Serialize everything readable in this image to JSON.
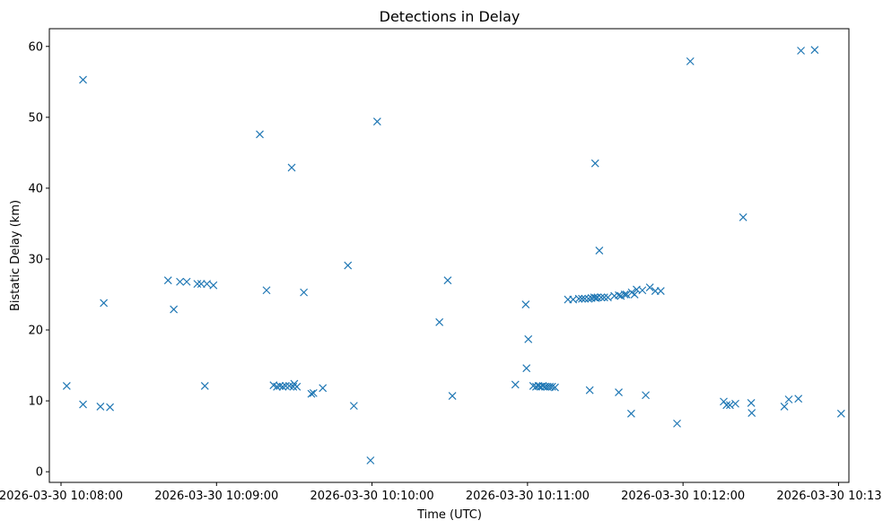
{
  "chart_data": {
    "type": "scatter",
    "title": "Detections in Delay",
    "xlabel": "Time (UTC)",
    "ylabel": "Bistatic Delay (km)",
    "x_unit": "seconds since 2026-03-30 10:08:00 UTC",
    "xlim": [
      -4.5,
      304
    ],
    "ylim": [
      -1.5,
      62.5
    ],
    "grid": false,
    "marker": "x",
    "color": "#1f77b4",
    "x_ticks": [
      {
        "value": 0,
        "label": "2026-03-30 10:08:00"
      },
      {
        "value": 60,
        "label": "2026-03-30 10:09:00"
      },
      {
        "value": 120,
        "label": "2026-03-30 10:10:00"
      },
      {
        "value": 180,
        "label": "2026-03-30 10:11:00"
      },
      {
        "value": 240,
        "label": "2026-03-30 10:12:00"
      },
      {
        "value": 300,
        "label": "2026-03-30 10:13:00"
      }
    ],
    "y_ticks": [
      {
        "value": 0,
        "label": "0"
      },
      {
        "value": 10,
        "label": "10"
      },
      {
        "value": 20,
        "label": "20"
      },
      {
        "value": 30,
        "label": "30"
      },
      {
        "value": 40,
        "label": "40"
      },
      {
        "value": 50,
        "label": "50"
      },
      {
        "value": 60,
        "label": "60"
      }
    ],
    "series": [
      {
        "name": "detections",
        "points": [
          [
            2.2,
            12.1
          ],
          [
            8.5,
            55.3
          ],
          [
            8.5,
            9.5
          ],
          [
            15.2,
            9.2
          ],
          [
            16.5,
            23.8
          ],
          [
            18.9,
            9.1
          ],
          [
            41.3,
            27.0
          ],
          [
            43.5,
            22.9
          ],
          [
            45.9,
            26.8
          ],
          [
            48.5,
            26.8
          ],
          [
            52.6,
            26.5
          ],
          [
            54.1,
            26.5
          ],
          [
            55.5,
            12.1
          ],
          [
            56.3,
            26.5
          ],
          [
            58.8,
            26.3
          ],
          [
            76.7,
            47.6
          ],
          [
            79.3,
            25.6
          ],
          [
            82.0,
            12.2
          ],
          [
            83.3,
            12.0
          ],
          [
            84.4,
            12.1
          ],
          [
            85.5,
            12.0
          ],
          [
            86.7,
            12.1
          ],
          [
            88.1,
            12.1
          ],
          [
            89.0,
            42.9
          ],
          [
            89.6,
            12.0
          ],
          [
            90.0,
            12.4
          ],
          [
            91.0,
            12.0
          ],
          [
            93.7,
            25.3
          ],
          [
            96.6,
            11.0
          ],
          [
            97.4,
            11.1
          ],
          [
            101.0,
            11.8
          ],
          [
            110.7,
            29.1
          ],
          [
            113.0,
            9.3
          ],
          [
            119.4,
            1.6
          ],
          [
            122.0,
            49.4
          ],
          [
            146.0,
            21.1
          ],
          [
            149.2,
            27.0
          ],
          [
            151.0,
            10.7
          ],
          [
            175.3,
            12.3
          ],
          [
            179.3,
            23.6
          ],
          [
            179.6,
            14.6
          ],
          [
            180.3,
            18.7
          ],
          [
            182.2,
            12.1
          ],
          [
            183.3,
            12.0
          ],
          [
            184.2,
            12.1
          ],
          [
            185.0,
            12.0
          ],
          [
            185.9,
            12.1
          ],
          [
            186.8,
            12.0
          ],
          [
            187.7,
            12.0
          ],
          [
            188.6,
            12.0
          ],
          [
            189.5,
            12.0
          ],
          [
            190.6,
            11.9
          ],
          [
            195.6,
            24.3
          ],
          [
            197.6,
            24.3
          ],
          [
            199.8,
            24.4
          ],
          [
            201.0,
            24.4
          ],
          [
            202.1,
            24.4
          ],
          [
            203.5,
            24.4
          ],
          [
            204.7,
            24.5
          ],
          [
            205.7,
            24.6
          ],
          [
            206.4,
            24.5
          ],
          [
            207.0,
            24.6
          ],
          [
            208.4,
            24.6
          ],
          [
            209.6,
            24.6
          ],
          [
            211.0,
            24.6
          ],
          [
            213.5,
            24.8
          ],
          [
            215.2,
            24.9
          ],
          [
            216.0,
            24.8
          ],
          [
            217.5,
            25.0
          ],
          [
            218.2,
            25.0
          ],
          [
            220.2,
            25.3
          ],
          [
            221.3,
            25.0
          ],
          [
            222.1,
            25.7
          ],
          [
            224.3,
            25.6
          ],
          [
            227.2,
            26.0
          ],
          [
            229.3,
            25.5
          ],
          [
            204.0,
            11.5
          ],
          [
            206.1,
            43.5
          ],
          [
            207.7,
            31.2
          ],
          [
            215.2,
            11.2
          ],
          [
            220.0,
            8.2
          ],
          [
            225.6,
            10.8
          ],
          [
            231.4,
            25.5
          ],
          [
            237.7,
            6.8
          ],
          [
            242.8,
            57.9
          ],
          [
            255.7,
            9.9
          ],
          [
            256.8,
            9.4
          ],
          [
            258.1,
            9.4
          ],
          [
            260.2,
            9.6
          ],
          [
            263.2,
            35.9
          ],
          [
            266.3,
            9.7
          ],
          [
            266.5,
            8.3
          ],
          [
            279.1,
            9.2
          ],
          [
            280.8,
            10.2
          ],
          [
            284.5,
            10.3
          ],
          [
            285.5,
            59.4
          ],
          [
            290.8,
            59.5
          ],
          [
            301.0,
            8.2
          ]
        ]
      }
    ]
  }
}
